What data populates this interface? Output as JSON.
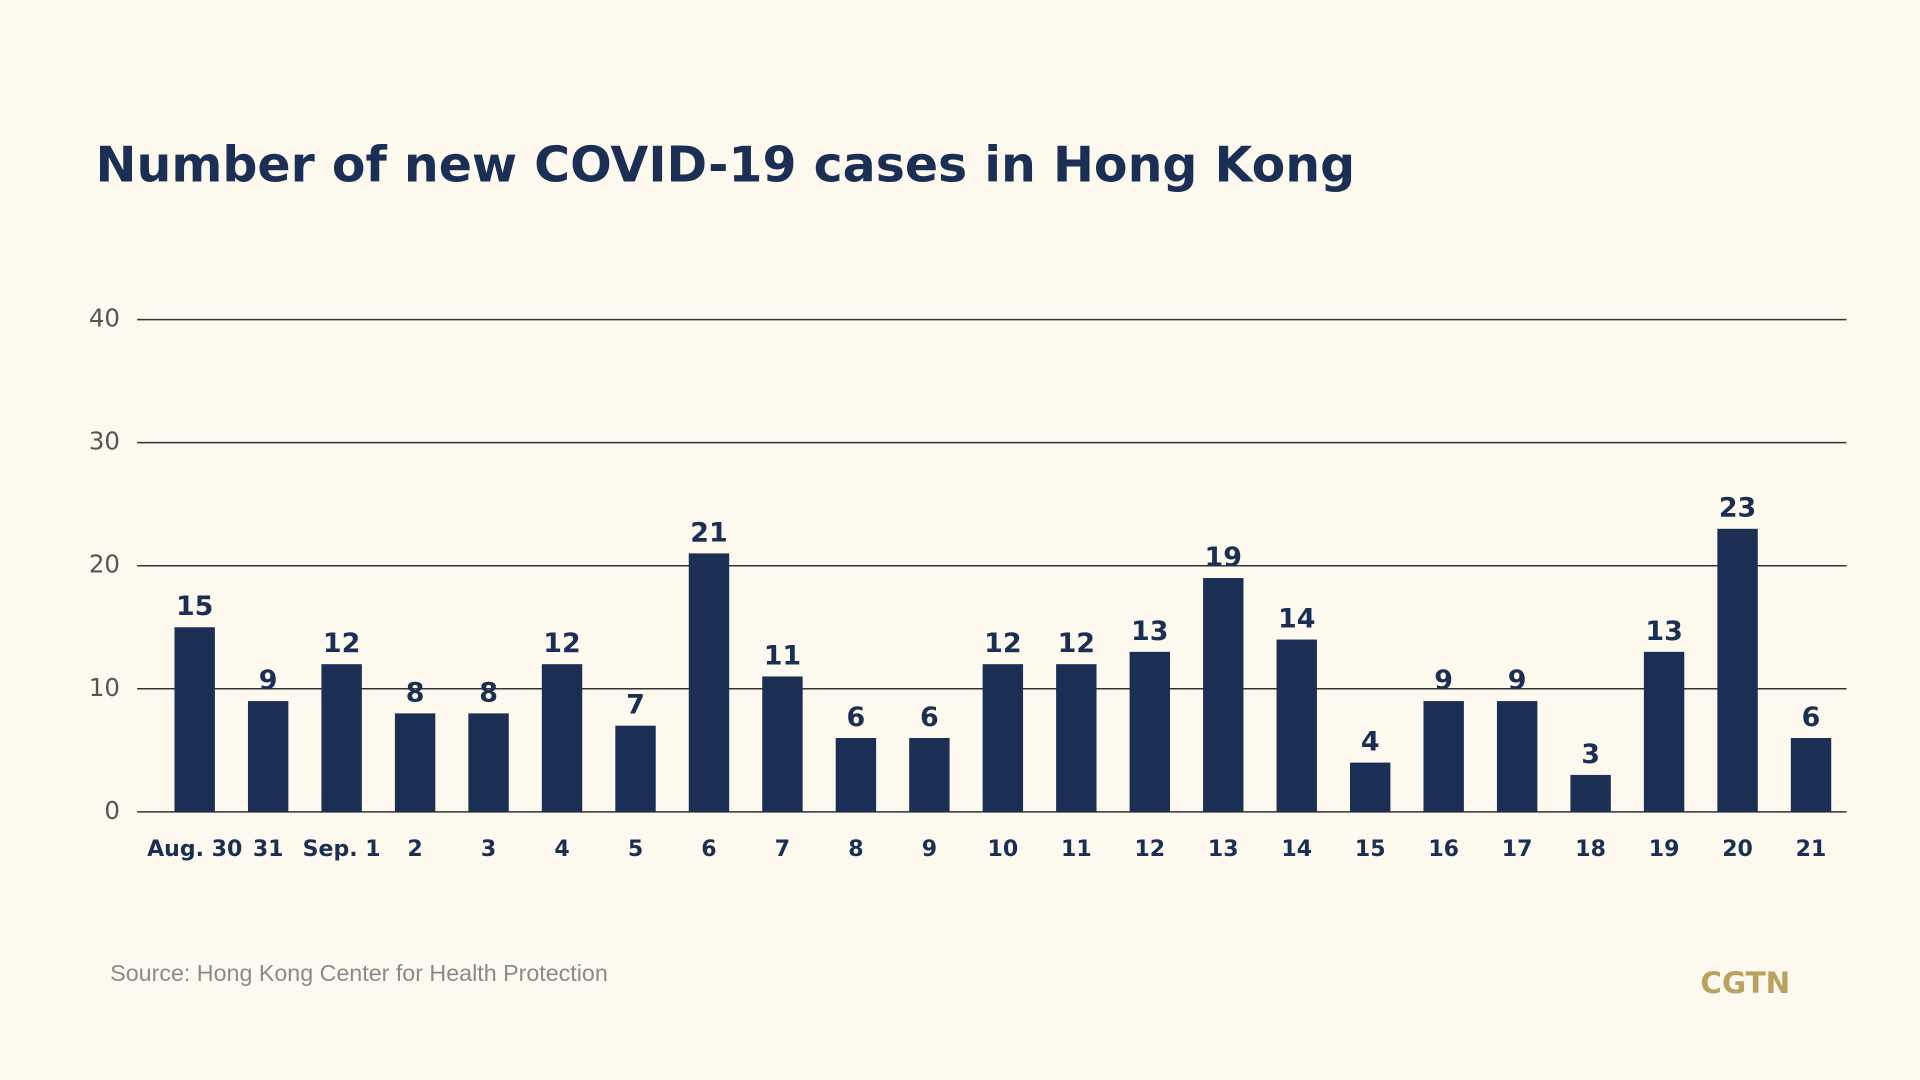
{
  "chart_data": {
    "type": "bar",
    "title": "Number of new COVID-19 cases in Hong Kong",
    "categories": [
      "Aug. 30",
      "31",
      "Sep. 1",
      "2",
      "3",
      "4",
      "5",
      "6",
      "7",
      "8",
      "9",
      "10",
      "11",
      "12",
      "13",
      "14",
      "15",
      "16",
      "17",
      "18",
      "19",
      "20",
      "21"
    ],
    "values": [
      15,
      9,
      12,
      8,
      8,
      12,
      7,
      21,
      11,
      6,
      6,
      12,
      12,
      13,
      19,
      14,
      4,
      9,
      9,
      3,
      13,
      23,
      6
    ],
    "color": "#1b2f55",
    "ylim": [
      0,
      40
    ],
    "yticks": [
      0,
      10,
      20,
      30,
      40
    ],
    "grid": true,
    "source": "Source: Hong Kong Center for Health Protection",
    "logo": "CGTN"
  }
}
